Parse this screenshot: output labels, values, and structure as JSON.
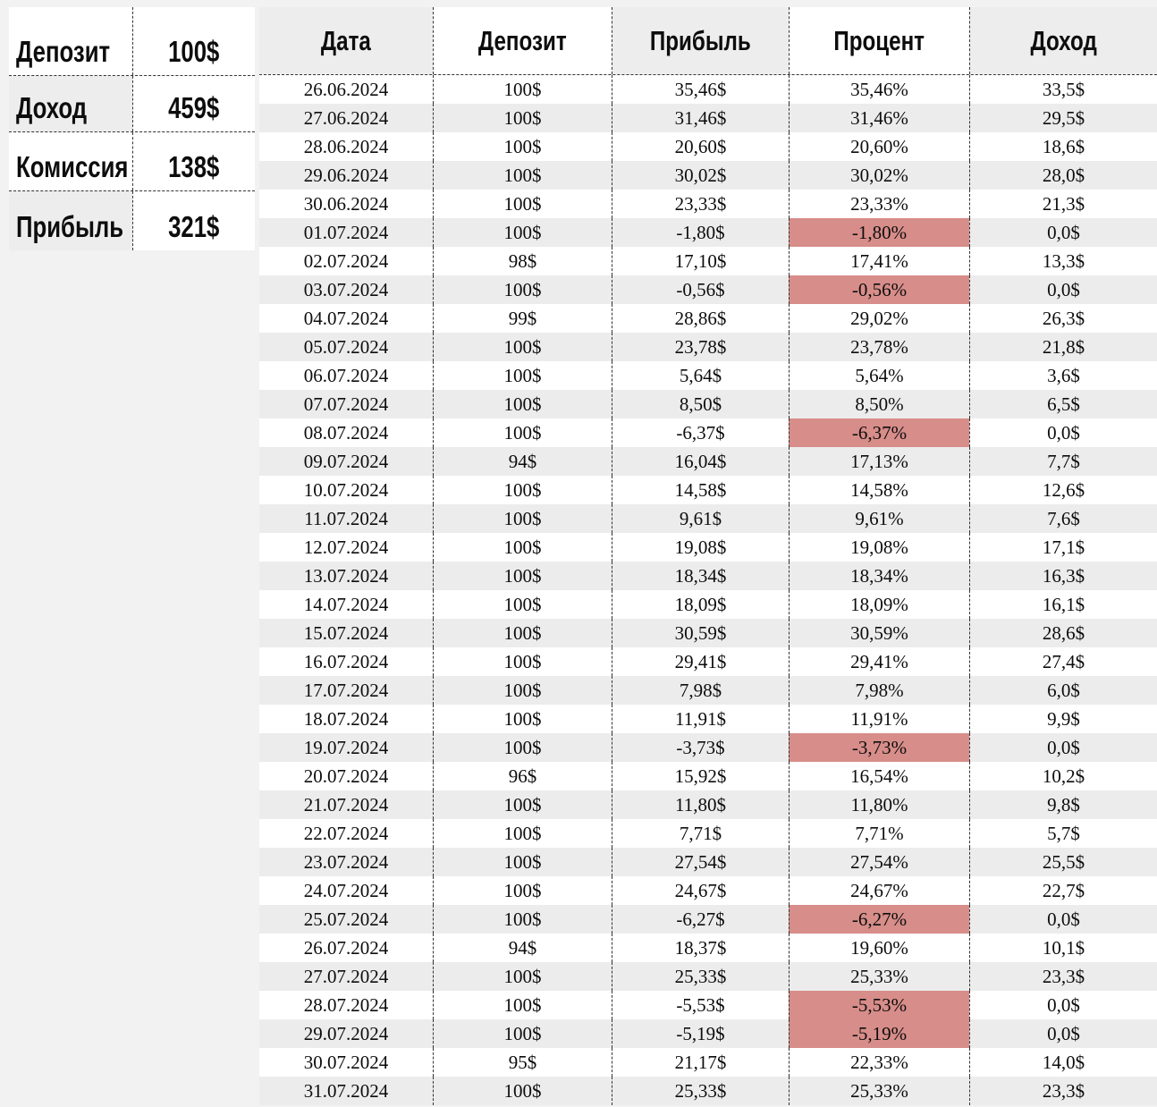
{
  "summary": {
    "rows": [
      {
        "label": "Депозит",
        "value": "100$"
      },
      {
        "label": "Доход",
        "value": "459$"
      },
      {
        "label": "Комиссия",
        "value": "138$"
      },
      {
        "label": "Прибыль",
        "value": "321$"
      }
    ]
  },
  "table": {
    "headers": [
      "Дата",
      "Депозит",
      "Прибыль",
      "Процент",
      "Доход"
    ],
    "rows": [
      [
        "26.06.2024",
        "100$",
        "35,46$",
        "35,46%",
        "33,5$"
      ],
      [
        "27.06.2024",
        "100$",
        "31,46$",
        "31,46%",
        "29,5$"
      ],
      [
        "28.06.2024",
        "100$",
        "20,60$",
        "20,60%",
        "18,6$"
      ],
      [
        "29.06.2024",
        "100$",
        "30,02$",
        "30,02%",
        "28,0$"
      ],
      [
        "30.06.2024",
        "100$",
        "23,33$",
        "23,33%",
        "21,3$"
      ],
      [
        "01.07.2024",
        "100$",
        "-1,80$",
        "-1,80%",
        "0,0$"
      ],
      [
        "02.07.2024",
        "98$",
        "17,10$",
        "17,41%",
        "13,3$"
      ],
      [
        "03.07.2024",
        "100$",
        "-0,56$",
        "-0,56%",
        "0,0$"
      ],
      [
        "04.07.2024",
        "99$",
        "28,86$",
        "29,02%",
        "26,3$"
      ],
      [
        "05.07.2024",
        "100$",
        "23,78$",
        "23,78%",
        "21,8$"
      ],
      [
        "06.07.2024",
        "100$",
        "5,64$",
        "5,64%",
        "3,6$"
      ],
      [
        "07.07.2024",
        "100$",
        "8,50$",
        "8,50%",
        "6,5$"
      ],
      [
        "08.07.2024",
        "100$",
        "-6,37$",
        "-6,37%",
        "0,0$"
      ],
      [
        "09.07.2024",
        "94$",
        "16,04$",
        "17,13%",
        "7,7$"
      ],
      [
        "10.07.2024",
        "100$",
        "14,58$",
        "14,58%",
        "12,6$"
      ],
      [
        "11.07.2024",
        "100$",
        "9,61$",
        "9,61%",
        "7,6$"
      ],
      [
        "12.07.2024",
        "100$",
        "19,08$",
        "19,08%",
        "17,1$"
      ],
      [
        "13.07.2024",
        "100$",
        "18,34$",
        "18,34%",
        "16,3$"
      ],
      [
        "14.07.2024",
        "100$",
        "18,09$",
        "18,09%",
        "16,1$"
      ],
      [
        "15.07.2024",
        "100$",
        "30,59$",
        "30,59%",
        "28,6$"
      ],
      [
        "16.07.2024",
        "100$",
        "29,41$",
        "29,41%",
        "27,4$"
      ],
      [
        "17.07.2024",
        "100$",
        "7,98$",
        "7,98%",
        "6,0$"
      ],
      [
        "18.07.2024",
        "100$",
        "11,91$",
        "11,91%",
        "9,9$"
      ],
      [
        "19.07.2024",
        "100$",
        "-3,73$",
        "-3,73%",
        "0,0$"
      ],
      [
        "20.07.2024",
        "96$",
        "15,92$",
        "16,54%",
        "10,2$"
      ],
      [
        "21.07.2024",
        "100$",
        "11,80$",
        "11,80%",
        "9,8$"
      ],
      [
        "22.07.2024",
        "100$",
        "7,71$",
        "7,71%",
        "5,7$"
      ],
      [
        "23.07.2024",
        "100$",
        "27,54$",
        "27,54%",
        "25,5$"
      ],
      [
        "24.07.2024",
        "100$",
        "24,67$",
        "24,67%",
        "22,7$"
      ],
      [
        "25.07.2024",
        "100$",
        "-6,27$",
        "-6,27%",
        "0,0$"
      ],
      [
        "26.07.2024",
        "94$",
        "18,37$",
        "19,60%",
        "10,1$"
      ],
      [
        "27.07.2024",
        "100$",
        "25,33$",
        "25,33%",
        "23,3$"
      ],
      [
        "28.07.2024",
        "100$",
        "-5,53$",
        "-5,53%",
        "0,0$"
      ],
      [
        "29.07.2024",
        "100$",
        "-5,19$",
        "-5,19%",
        "0,0$"
      ],
      [
        "30.07.2024",
        "95$",
        "21,17$",
        "22,33%",
        "14,0$"
      ],
      [
        "31.07.2024",
        "100$",
        "25,33$",
        "25,33%",
        "23,3$"
      ]
    ],
    "highlighted_percent_rows": [
      5,
      7,
      12,
      23,
      29,
      32,
      33
    ]
  },
  "colors": {
    "page_bg": "#f2f2f2",
    "cell_white": "#ffffff",
    "stripe_gray": "#ececec",
    "header_gray": "#ededed",
    "negative_highlight": "#d78d89",
    "border": "#333333"
  }
}
